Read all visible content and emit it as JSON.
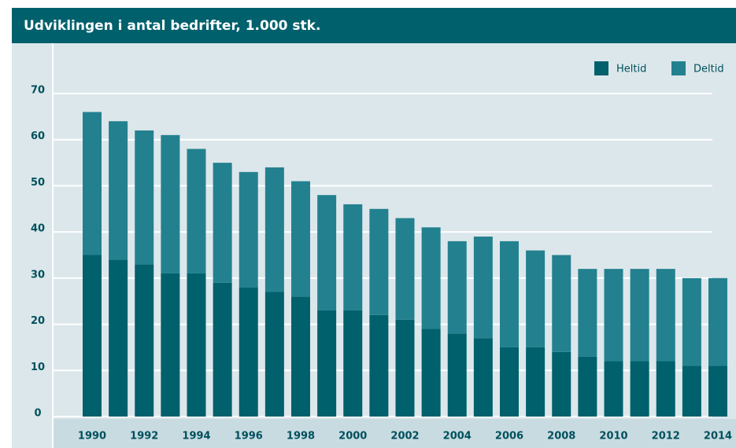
{
  "chart_data": {
    "type": "stacked-bar",
    "title": "Udviklingen i antal bedrifter, 1.000 stk.",
    "categories": [
      "1990",
      null,
      "1992",
      null,
      "1994",
      null,
      "1996",
      null,
      "1998",
      null,
      "2000",
      null,
      "2002",
      null,
      "2004",
      null,
      "2006",
      null,
      "2008",
      null,
      "2010",
      null,
      "2012",
      null,
      "2014"
    ],
    "series": [
      {
        "name": "Heltid",
        "color": "#00606c",
        "values": [
          35,
          34,
          33,
          31,
          31,
          29,
          28,
          27,
          26,
          23,
          23,
          22,
          21,
          19,
          18,
          17,
          15,
          15,
          14,
          13,
          12,
          12,
          12,
          11,
          11
        ]
      },
      {
        "name": "Deltid",
        "color": "#23818f",
        "values": [
          31,
          30,
          29,
          30,
          27,
          26,
          25,
          27,
          25,
          25,
          23,
          23,
          22,
          22,
          20,
          22,
          23,
          21,
          21,
          19,
          20,
          20,
          20,
          19,
          19
        ]
      }
    ],
    "ylim": [
      0,
      70
    ],
    "yticks": [
      0,
      10,
      20,
      30,
      40,
      50,
      60,
      70
    ],
    "grid": true,
    "legend": "top-right"
  }
}
